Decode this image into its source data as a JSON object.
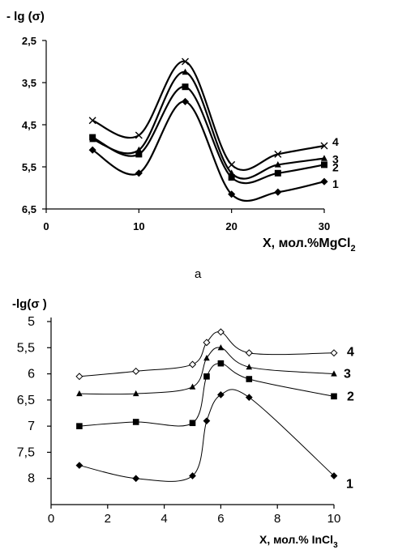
{
  "chart_data": [
    {
      "type": "line",
      "panel_label": "а",
      "ylabel": "- lg (σ)",
      "xlabel": "X, мол.%MgCl",
      "xlabel_sub": "2",
      "xlim": [
        0,
        30
      ],
      "ylim": [
        2.5,
        6.5
      ],
      "y_inverted": true,
      "xticks": [
        "0",
        "10",
        "20",
        "30"
      ],
      "xtick_values": [
        0,
        10,
        20,
        30
      ],
      "yticks": [
        "2,5",
        "3,5",
        "4,5",
        "5,5",
        "6,5"
      ],
      "ytick_values": [
        2.5,
        3.5,
        4.5,
        5.5,
        6.5
      ],
      "x": [
        5,
        10,
        15,
        20,
        25,
        30
      ],
      "smooth": true,
      "series": [
        {
          "name": "1",
          "marker": "diamond",
          "values": [
            5.1,
            5.65,
            3.95,
            6.15,
            6.1,
            5.85
          ]
        },
        {
          "name": "2",
          "marker": "square",
          "values": [
            4.8,
            5.2,
            3.6,
            5.75,
            5.65,
            5.45
          ]
        },
        {
          "name": "3",
          "marker": "triangle",
          "values": [
            4.85,
            5.1,
            3.25,
            5.65,
            5.45,
            5.3
          ]
        },
        {
          "name": "4",
          "marker": "cross",
          "values": [
            4.4,
            4.75,
            3.0,
            5.45,
            5.2,
            5.0
          ]
        }
      ]
    },
    {
      "type": "line",
      "ylabel": "-lg(σ )",
      "xlabel": "X, мол.% InCl",
      "xlabel_sub": "3",
      "xlim": [
        0,
        10
      ],
      "ylim": [
        5,
        8.5
      ],
      "y_inverted": true,
      "xticks": [
        "0",
        "2",
        "4",
        "6",
        "8",
        "10"
      ],
      "xtick_values": [
        0,
        2,
        4,
        6,
        8,
        10
      ],
      "yticks": [
        "5",
        "5,5",
        "6",
        "6,5",
        "7",
        "7,5",
        "8"
      ],
      "ytick_values": [
        5,
        5.5,
        6,
        6.5,
        7,
        7.5,
        8
      ],
      "x": [
        1,
        3,
        5,
        5.5,
        6,
        7,
        10
      ],
      "smooth": true,
      "series": [
        {
          "name": "1",
          "marker": "diamond-filled",
          "values": [
            7.75,
            8.0,
            7.95,
            6.9,
            6.4,
            6.45,
            7.95
          ]
        },
        {
          "name": "2",
          "marker": "square",
          "values": [
            7.0,
            6.92,
            6.94,
            6.05,
            5.8,
            6.1,
            6.43
          ]
        },
        {
          "name": "3",
          "marker": "triangle",
          "values": [
            6.38,
            6.38,
            6.25,
            5.7,
            5.5,
            5.87,
            6.0
          ]
        },
        {
          "name": "4",
          "marker": "diamond-open",
          "values": [
            6.05,
            5.95,
            5.82,
            5.4,
            5.2,
            5.6,
            5.6
          ]
        }
      ]
    }
  ]
}
